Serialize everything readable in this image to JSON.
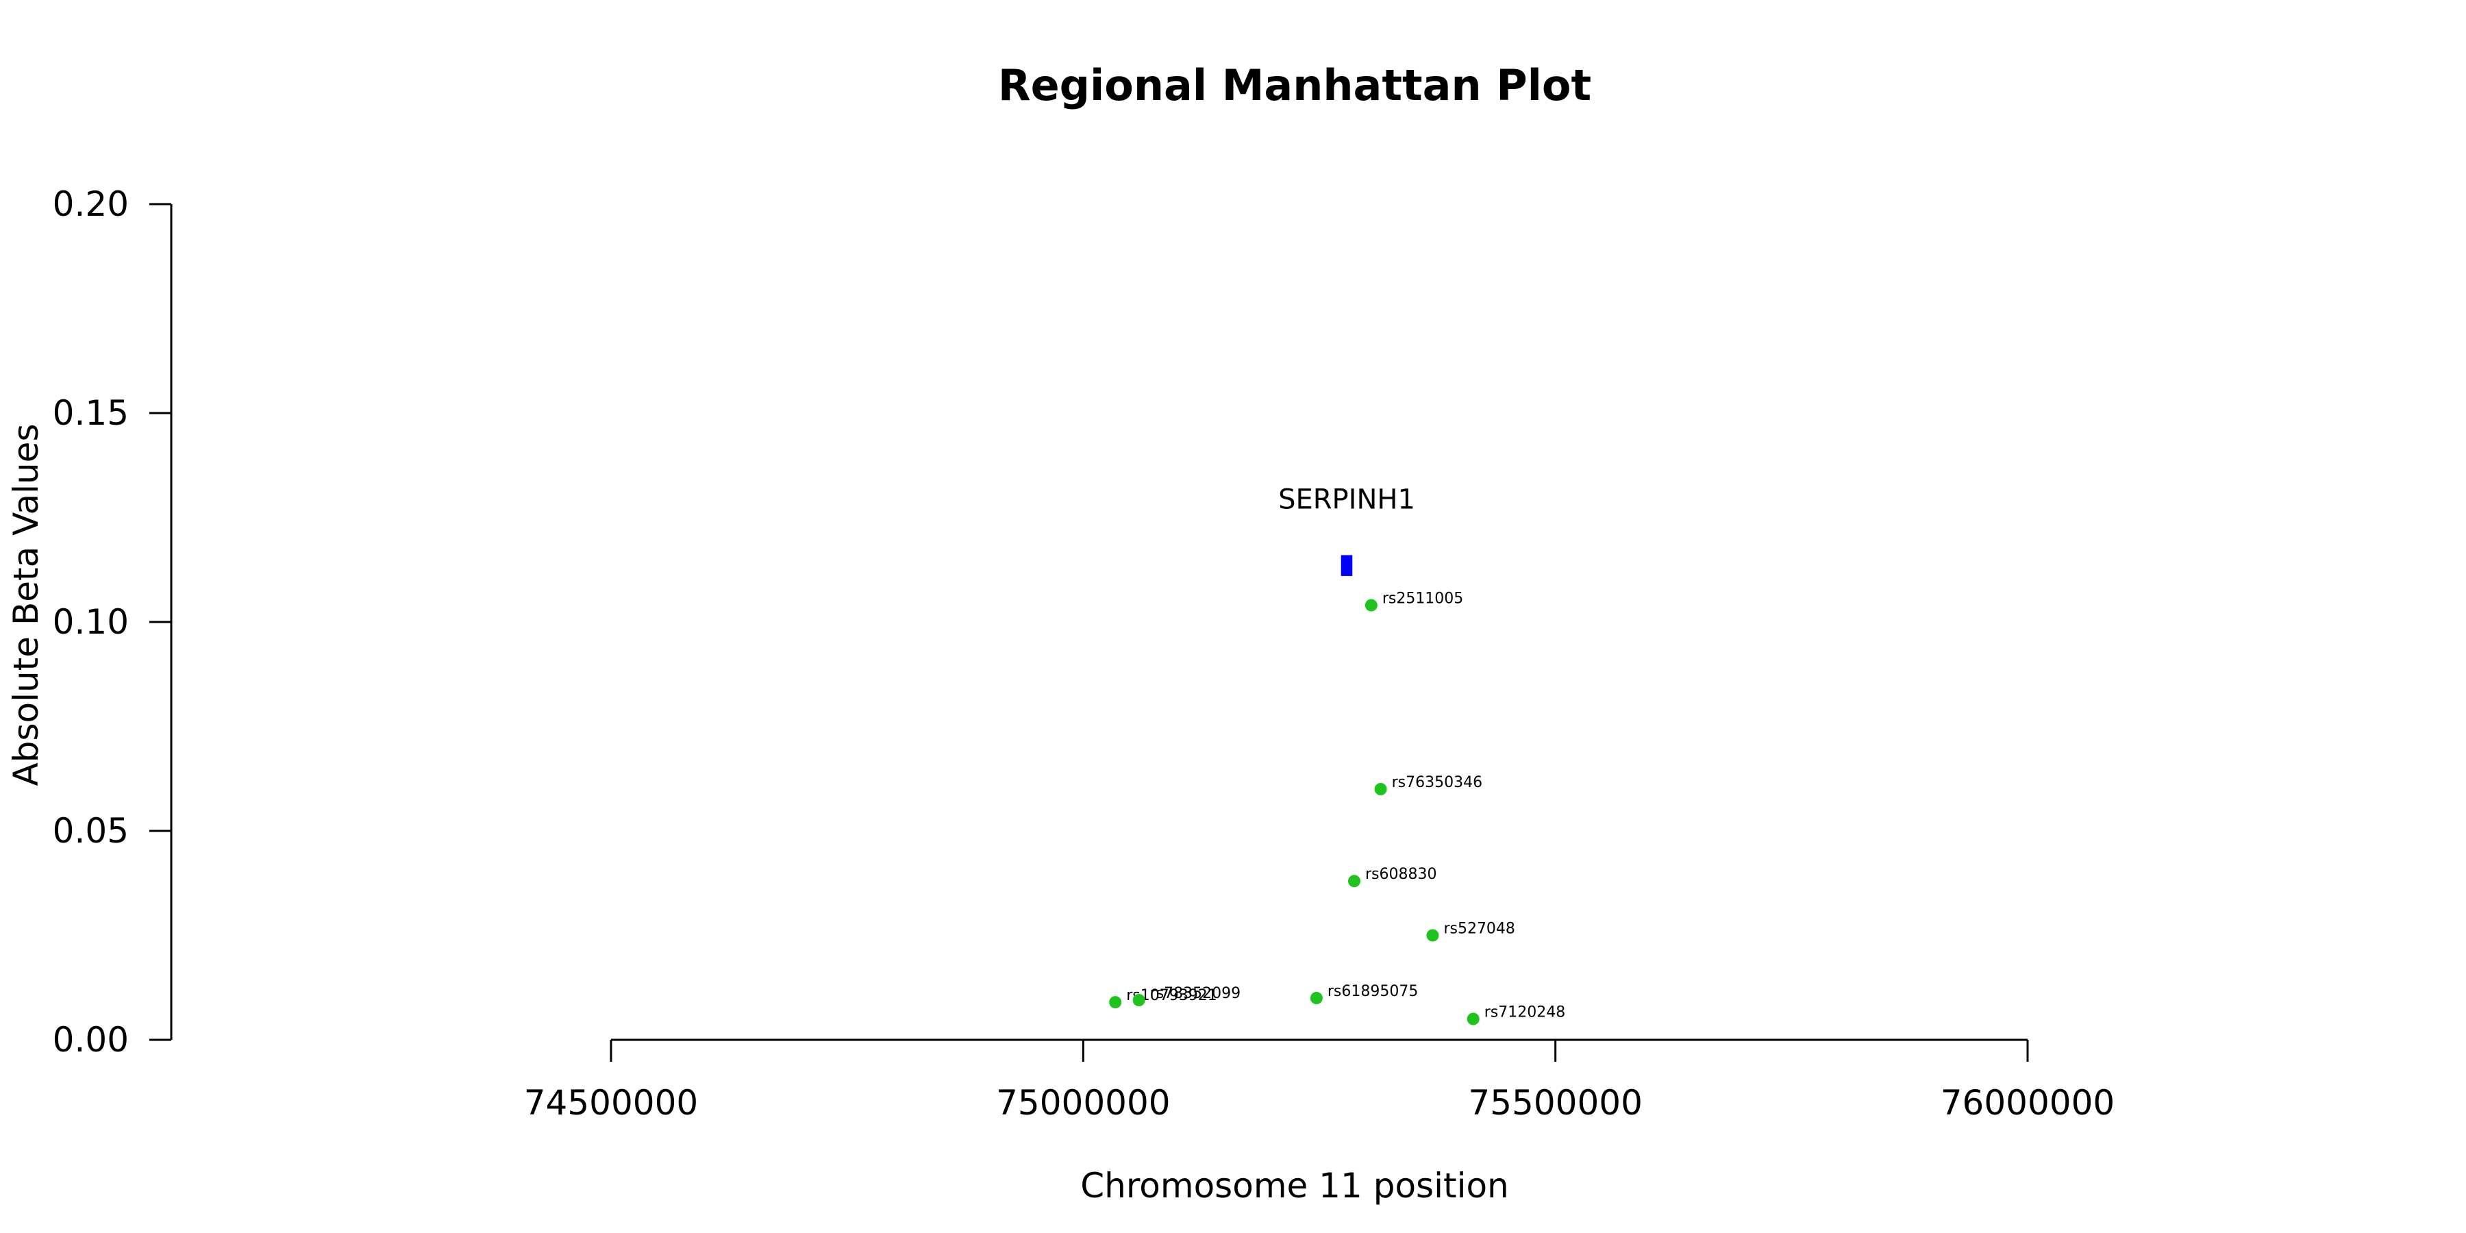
{
  "chart_data": {
    "type": "scatter",
    "title": "Regional Manhattan Plot",
    "xlabel": "Chromosome 11 position",
    "ylabel": "Absolute Beta Values",
    "xlim": [
      74500000,
      76000000
    ],
    "ylim": [
      0,
      0.2
    ],
    "x_ticks": [
      74500000,
      75000000,
      75500000,
      76000000
    ],
    "y_ticks": [
      0.0,
      0.05,
      0.1,
      0.15,
      0.2
    ],
    "x_tick_labels": [
      "74500000",
      "75000000",
      "75500000",
      "76000000"
    ],
    "y_tick_labels": [
      "0.00",
      "0.05",
      "0.10",
      "0.15",
      "0.20"
    ],
    "grid": false,
    "point_color": "#1ec31e",
    "gene_color": "#0000ff",
    "points": [
      {
        "label": "rs2511005",
        "x": 75305000,
        "y": 0.104
      },
      {
        "label": "rs76350346",
        "x": 75315000,
        "y": 0.06
      },
      {
        "label": "rs608830",
        "x": 75287000,
        "y": 0.038
      },
      {
        "label": "rs527048",
        "x": 75370000,
        "y": 0.025
      },
      {
        "label": "rs61895075",
        "x": 75247000,
        "y": 0.01
      },
      {
        "label": "rs7120248",
        "x": 75413000,
        "y": 0.005
      },
      {
        "label": "rs10793921",
        "x": 75034000,
        "y": 0.009
      },
      {
        "label": "rs78352099",
        "x": 75059000,
        "y": 0.0095
      }
    ],
    "genes": [
      {
        "name": "SERPINH1",
        "start": 75273000,
        "end": 75285000,
        "y": 0.1135,
        "height": 0.005
      }
    ]
  }
}
